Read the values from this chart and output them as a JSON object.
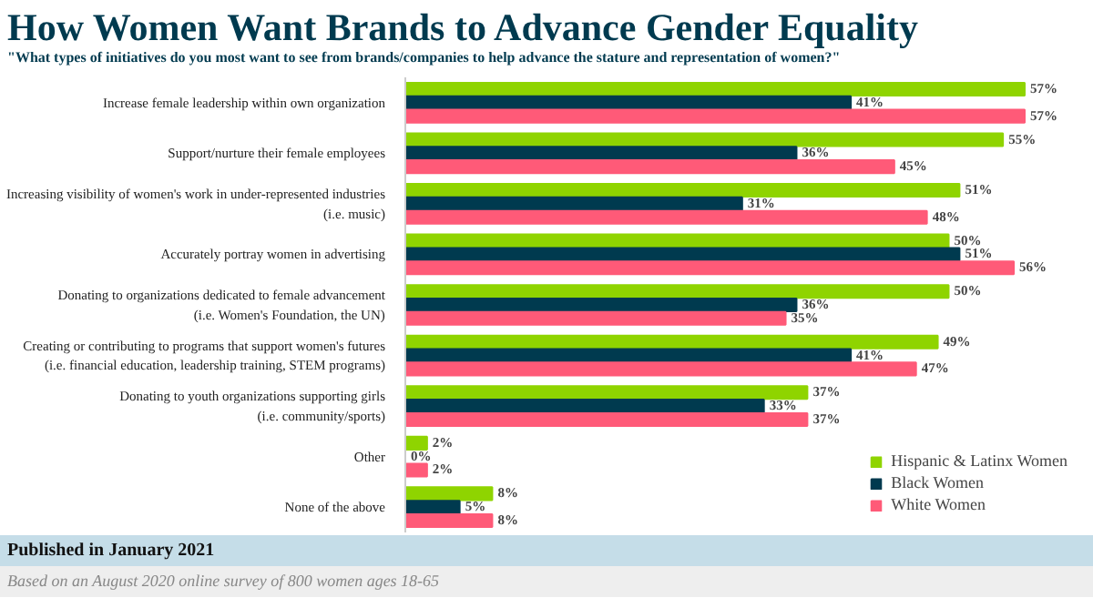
{
  "chart_data": {
    "type": "bar",
    "orientation": "horizontal",
    "title": "How Women Want Brands to Advance Gender Equality",
    "subtitle": "\"What types of initiatives do you most want to see from brands/companies to help advance the stature and representation of women?\"",
    "categories": [
      "Increase female leadership within own organization",
      "Support/nurture their female employees",
      "Increasing visibility of women's work in under-represented industries\n(i.e. music)",
      "Accurately portray women in advertising",
      "Donating to organizations dedicated to female advancement\n(i.e. Women's Foundation, the UN)",
      "Creating or contributing to programs that support women's futures\n(i.e. financial education, leadership training, STEM programs)",
      "Donating to youth organizations supporting girls\n(i.e. community/sports)",
      "Other",
      "None of the above"
    ],
    "series": [
      {
        "name": "Hispanic & Latinx Women",
        "color": "#8fd400",
        "values": [
          57,
          55,
          51,
          50,
          50,
          49,
          37,
          2,
          8
        ],
        "value_labels": [
          "57%",
          "55%",
          "51%",
          "50%",
          "50%",
          "49%",
          "37%",
          "2%",
          "8%"
        ]
      },
      {
        "name": "Black Women",
        "color": "#003a4f",
        "values": [
          41,
          36,
          31,
          51,
          36,
          41,
          33,
          0,
          5
        ],
        "value_labels": [
          "41%",
          "36%",
          "31%",
          "51%",
          "36%",
          "41%",
          "33%",
          "0%",
          "5%"
        ]
      },
      {
        "name": "White Women",
        "color": "#ff5a78",
        "values": [
          57,
          45,
          48,
          56,
          35,
          47,
          37,
          2,
          8
        ],
        "value_labels": [
          "57%",
          "45%",
          "48%",
          "56%",
          "35%",
          "47%",
          "37%",
          "2%",
          "8%"
        ]
      }
    ],
    "legend": "bottom right",
    "tick_labels": "y",
    "annotations": [
      "Published in January 2021",
      "Based on an August 2020 online survey of 800 women ages 18-65"
    ]
  }
}
